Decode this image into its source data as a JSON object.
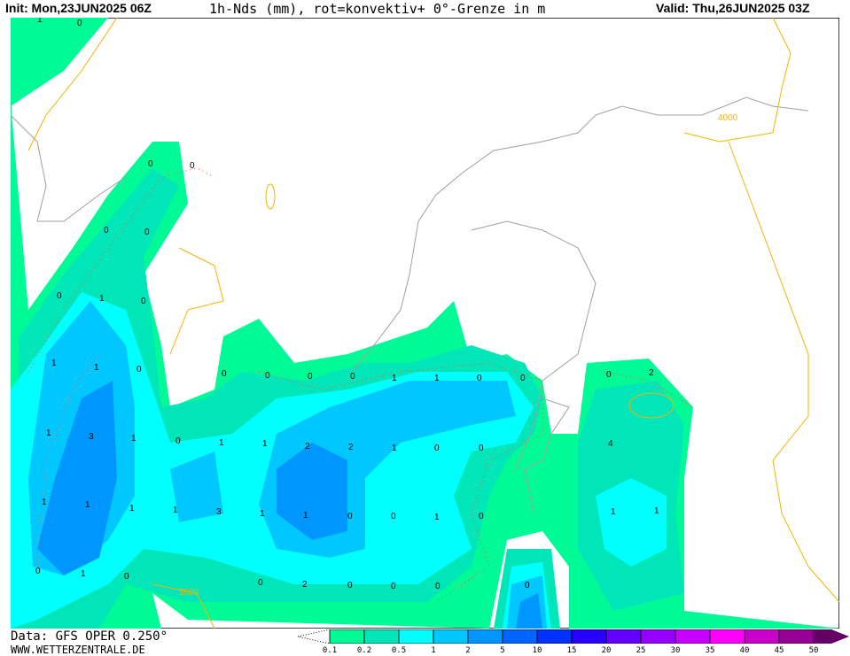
{
  "header": {
    "init": "Init: Mon,23JUN2025 06Z",
    "title": "1h-Nds (mm), rot=konvektiv+ 0°-Grenze in m",
    "valid": "Valid: Thu,26JUN2025 03Z"
  },
  "footer": {
    "data": "Data: GFS OPER 0.250°",
    "site": "WWW.WETTERZENTRALE.DE"
  },
  "legend": {
    "ticks": [
      "0.1",
      "0.2",
      "0.5",
      "1",
      "2",
      "5",
      "10",
      "15",
      "20",
      "25",
      "30",
      "35",
      "40",
      "45",
      "50"
    ],
    "colors": [
      "#00fa96",
      "#00e6b9",
      "#00ffff",
      "#00c8ff",
      "#0096ff",
      "#0064ff",
      "#0032ff",
      "#2800ff",
      "#6400ff",
      "#9600ff",
      "#c800ff",
      "#ff00ff",
      "#c800c8",
      "#960096",
      "#640064"
    ]
  },
  "map": {
    "freezing_level_labels": [
      "4000",
      "3500"
    ],
    "precip_labels": [
      "1",
      "0",
      "0",
      "0",
      "0",
      "0",
      "0",
      "1",
      "0",
      "1",
      "1",
      "0",
      "0",
      "0",
      "0",
      "0",
      "1",
      "1",
      "0",
      "0",
      "1",
      "3",
      "1",
      "0",
      "1",
      "1",
      "2",
      "2",
      "1",
      "0",
      "0",
      "0",
      "2",
      "4",
      "1",
      "1",
      "1",
      "1",
      "3",
      "1",
      "1",
      "0",
      "0",
      "1",
      "0",
      "1",
      "1",
      "0",
      "1",
      "0",
      "0",
      "2",
      "0",
      "0",
      "0",
      "0"
    ],
    "colors": {
      "coast": "#a0a0a0",
      "freezing_level": "#f0b400",
      "convective": "#ff6030"
    }
  }
}
